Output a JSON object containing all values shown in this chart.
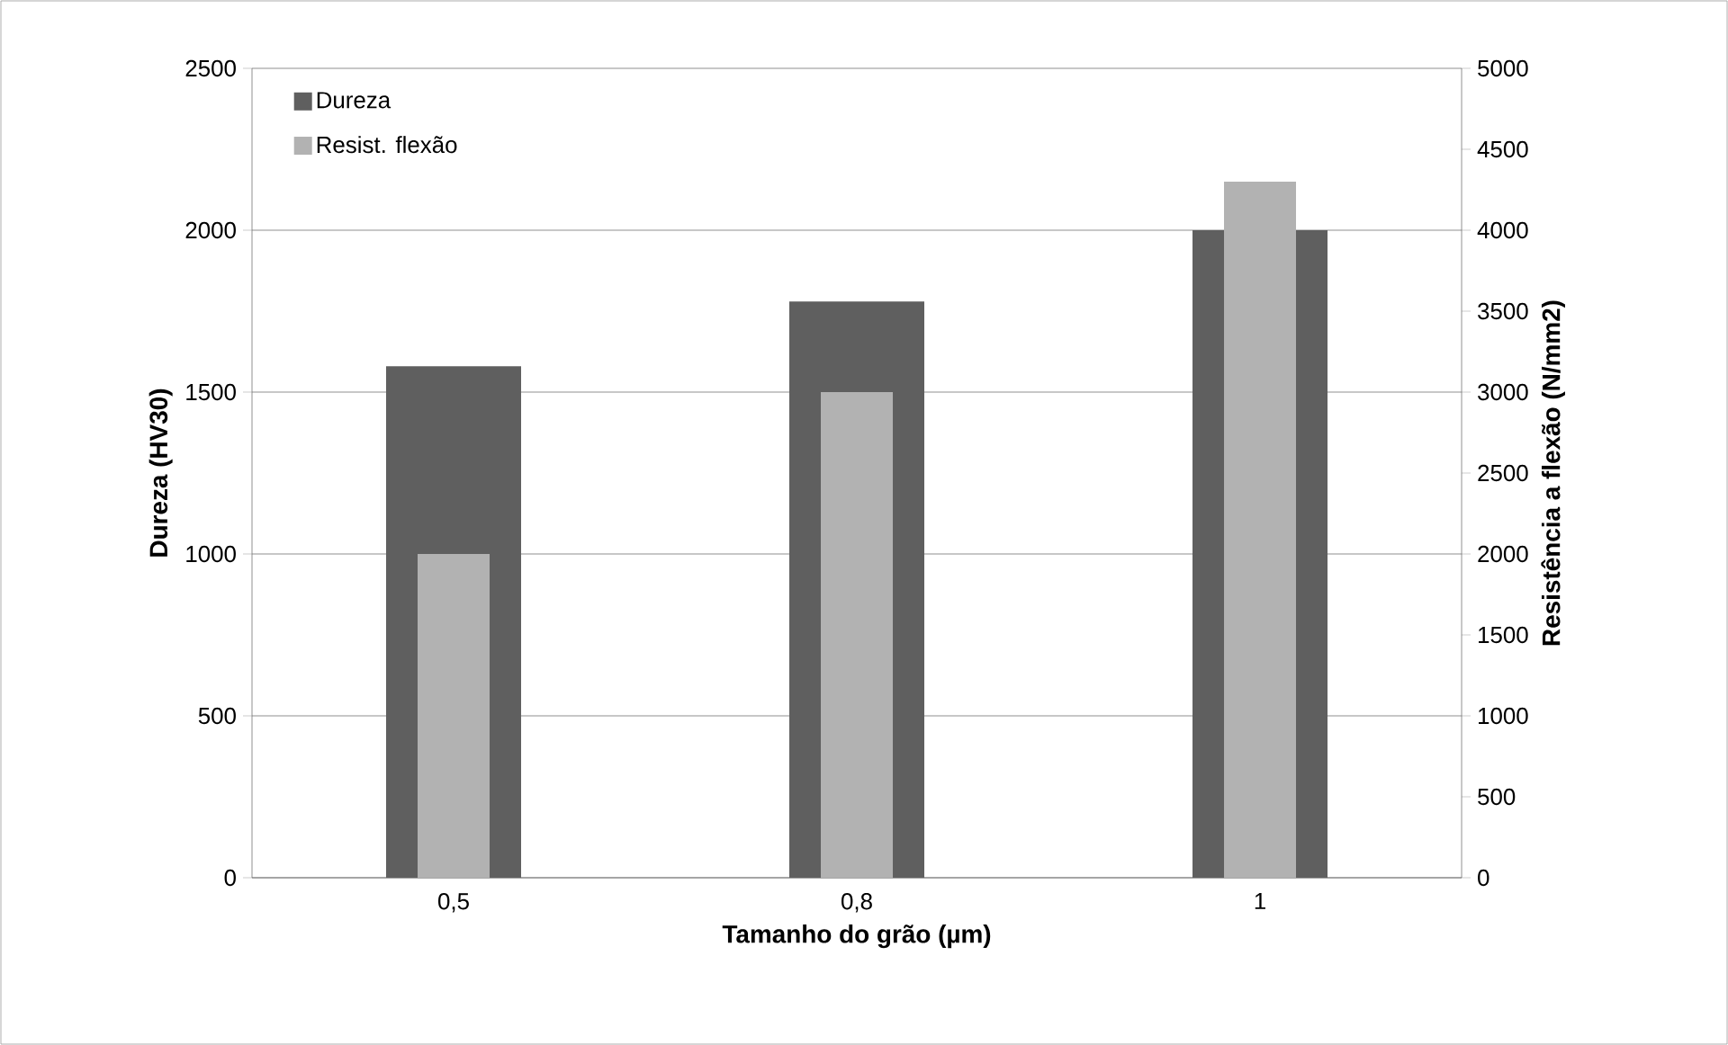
{
  "chart_data": {
    "type": "bar",
    "xlabel": "Tamanho do grão (µm)",
    "ylabel": "Dureza (HV30)",
    "y2label": "Resistência a flexão (N/mm2)",
    "categories": [
      "0,5",
      "0,8",
      "1"
    ],
    "series": [
      {
        "name": "Dureza",
        "color": "#5f5f5f",
        "values": [
          1580,
          1780,
          2000
        ]
      },
      {
        "name": "Resist. flexão",
        "color": "#b2b2b2",
        "values": [
          2000,
          3000,
          4300
        ],
        "axis": "y2"
      }
    ],
    "ylim": [
      0,
      2500
    ],
    "yticks": [
      0,
      500,
      1000,
      1500,
      2000,
      2500
    ],
    "y2lim": [
      0,
      5000
    ],
    "y2ticks": [
      0,
      500,
      1000,
      1500,
      2000,
      2500,
      3000,
      3500,
      4000,
      4500,
      5000
    ],
    "grid": "y",
    "legend": "top left"
  }
}
